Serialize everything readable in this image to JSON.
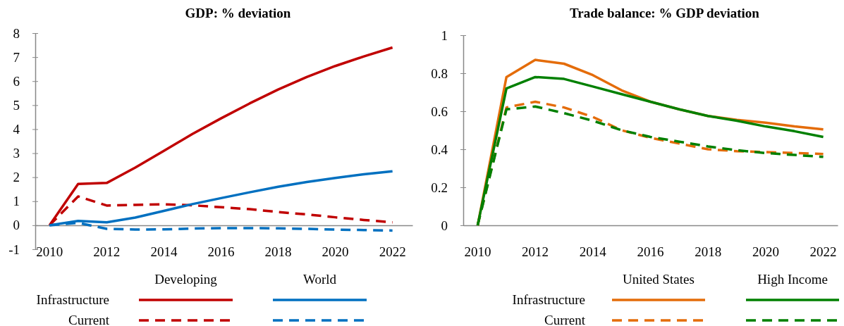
{
  "chart_data": [
    {
      "type": "line",
      "title": "GDP: % deviation",
      "x": [
        2010,
        2011,
        2012,
        2013,
        2014,
        2015,
        2016,
        2017,
        2018,
        2019,
        2020,
        2021,
        2022
      ],
      "xlim": [
        2009.5,
        2022.7
      ],
      "xticks": [
        2010,
        2012,
        2014,
        2016,
        2018,
        2020,
        2022
      ],
      "ylim": [
        -1,
        8
      ],
      "yticks": [
        -1,
        0,
        1,
        2,
        3,
        4,
        5,
        6,
        7,
        8
      ],
      "grid": false,
      "annotations": [
        "Developing",
        "World",
        "Infrastructure",
        "Current"
      ],
      "series": [
        {
          "color": "#c00000",
          "line_style": "solid",
          "values": [
            0,
            1.72,
            1.76,
            2.4,
            3.1,
            3.8,
            4.45,
            5.07,
            5.65,
            6.17,
            6.63,
            7.03,
            7.4
          ]
        },
        {
          "color": "#c00000",
          "line_style": "dashed",
          "values": [
            0,
            1.2,
            0.82,
            0.85,
            0.87,
            0.83,
            0.75,
            0.67,
            0.55,
            0.45,
            0.33,
            0.22,
            0.12
          ]
        },
        {
          "color": "#0070c0",
          "line_style": "solid",
          "values": [
            0,
            0.18,
            0.12,
            0.32,
            0.6,
            0.88,
            1.13,
            1.37,
            1.6,
            1.8,
            1.97,
            2.12,
            2.25
          ]
        },
        {
          "color": "#0070c0",
          "line_style": "dashed",
          "values": [
            0,
            0.1,
            -0.15,
            -0.18,
            -0.17,
            -0.14,
            -0.12,
            -0.12,
            -0.13,
            -0.15,
            -0.18,
            -0.2,
            -0.22
          ]
        }
      ]
    },
    {
      "type": "line",
      "title": "Trade balance: % GDP deviation",
      "x": [
        2010,
        2011,
        2012,
        2013,
        2014,
        2015,
        2016,
        2017,
        2018,
        2019,
        2020,
        2021,
        2022
      ],
      "xlim": [
        2009.5,
        2022.5
      ],
      "xticks": [
        2010,
        2012,
        2014,
        2016,
        2018,
        2020,
        2022
      ],
      "ylim": [
        0,
        1
      ],
      "yticks": [
        0,
        0.2,
        0.4,
        0.6,
        0.8,
        1
      ],
      "grid": false,
      "annotations": [
        "United States",
        "High Income",
        "Infrastructure",
        "Current"
      ],
      "series": [
        {
          "color": "#e46c0a",
          "line_style": "solid",
          "values": [
            0,
            0.78,
            0.87,
            0.85,
            0.79,
            0.71,
            0.65,
            0.61,
            0.575,
            0.555,
            0.54,
            0.52,
            0.505
          ]
        },
        {
          "color": "#e46c0a",
          "line_style": "dashed",
          "values": [
            0,
            0.62,
            0.65,
            0.62,
            0.57,
            0.5,
            0.46,
            0.43,
            0.4,
            0.39,
            0.385,
            0.38,
            0.375
          ]
        },
        {
          "color": "#008000",
          "line_style": "solid",
          "values": [
            0,
            0.72,
            0.78,
            0.77,
            0.73,
            0.69,
            0.65,
            0.61,
            0.575,
            0.55,
            0.52,
            0.495,
            0.465
          ]
        },
        {
          "color": "#008000",
          "line_style": "dashed",
          "values": [
            0,
            0.61,
            0.625,
            0.59,
            0.55,
            0.5,
            0.465,
            0.44,
            0.415,
            0.395,
            0.38,
            0.37,
            0.36
          ]
        }
      ]
    }
  ]
}
